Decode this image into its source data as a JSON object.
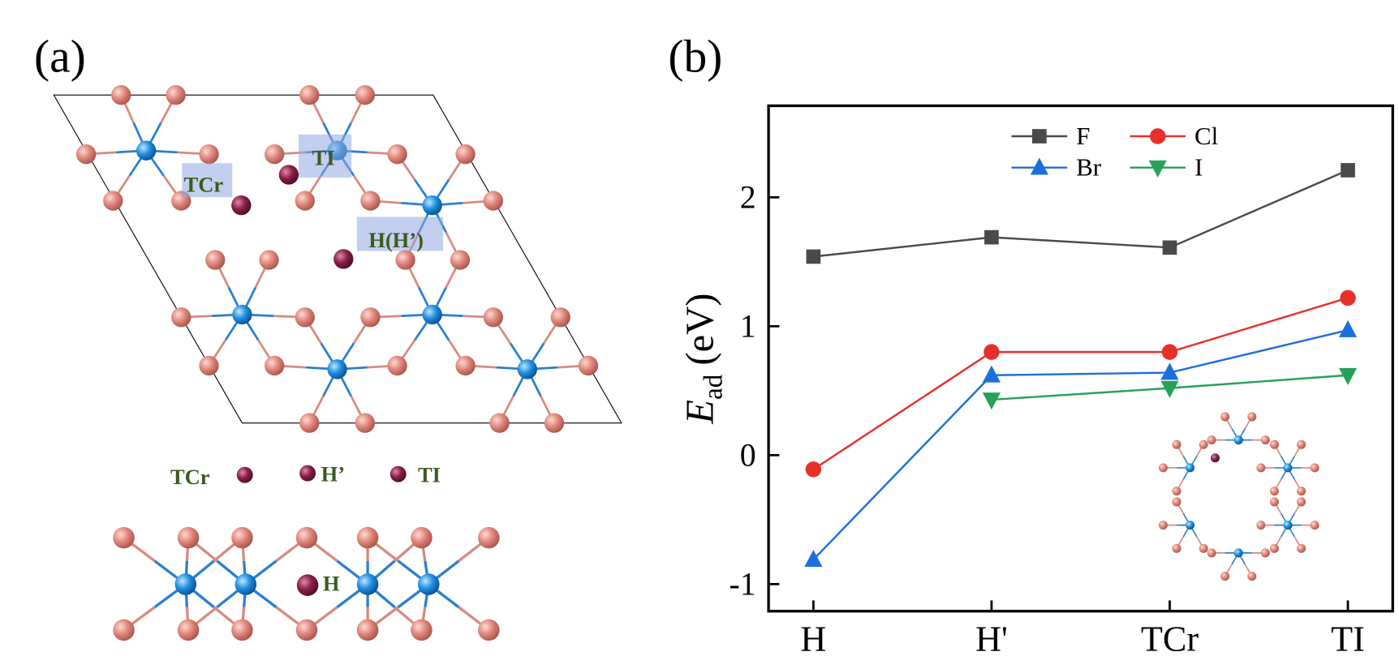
{
  "panel_a": {
    "label": "(a)",
    "top_view_labels": [
      "TCr",
      "TI",
      "H(H’)"
    ],
    "site_legend": [
      "TCr",
      "H’",
      "TI"
    ],
    "side_view_label": "H"
  },
  "panel_b_label": "(b)",
  "chart_data": {
    "type": "line",
    "ylabel": "E",
    "ylabel_sub": "ad",
    "ylabel_unit": "(eV)",
    "categories": [
      "H",
      "H'",
      "TCr",
      "TI"
    ],
    "series": [
      {
        "name": "F",
        "color": "#4a4a4a",
        "marker": "square",
        "values": [
          1.54,
          1.69,
          1.61,
          2.21
        ]
      },
      {
        "name": "Cl",
        "color": "#e8302a",
        "marker": "circle",
        "values": [
          -0.11,
          0.8,
          0.8,
          1.22
        ]
      },
      {
        "name": "Br",
        "color": "#1c6fdc",
        "marker": "triangle-up",
        "values": [
          -0.81,
          0.62,
          0.64,
          0.97
        ]
      },
      {
        "name": "I",
        "color": "#27a05a",
        "marker": "triangle-down",
        "values": [
          null,
          0.43,
          0.52,
          0.62
        ]
      }
    ],
    "ylim": [
      -1.21,
      2.71
    ],
    "yticks": [
      -1,
      0,
      1,
      2
    ],
    "grid": false,
    "legend": "top"
  }
}
